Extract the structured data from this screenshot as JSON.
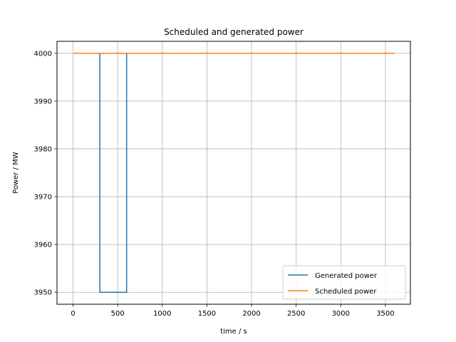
{
  "chart_data": {
    "type": "line",
    "title": "Scheduled and generated power",
    "xlabel": "time / s",
    "ylabel": "Power / MW",
    "xlim": [
      -180,
      3780
    ],
    "ylim": [
      3947.5,
      4002.5
    ],
    "xticks": [
      0,
      500,
      1000,
      1500,
      2000,
      2500,
      3000,
      3500
    ],
    "yticks": [
      3950,
      3960,
      3970,
      3980,
      3990,
      4000
    ],
    "grid": true,
    "legend_position": "lower-right",
    "series": [
      {
        "name": "Generated power",
        "color": "#1f77b4",
        "x": [
          0,
          300,
          300,
          600,
          600,
          3600
        ],
        "y": [
          4000,
          4000,
          3950,
          3950,
          4000,
          4000
        ]
      },
      {
        "name": "Scheduled power",
        "color": "#ff7f0e",
        "x": [
          0,
          3600
        ],
        "y": [
          4000,
          4000
        ]
      }
    ]
  }
}
